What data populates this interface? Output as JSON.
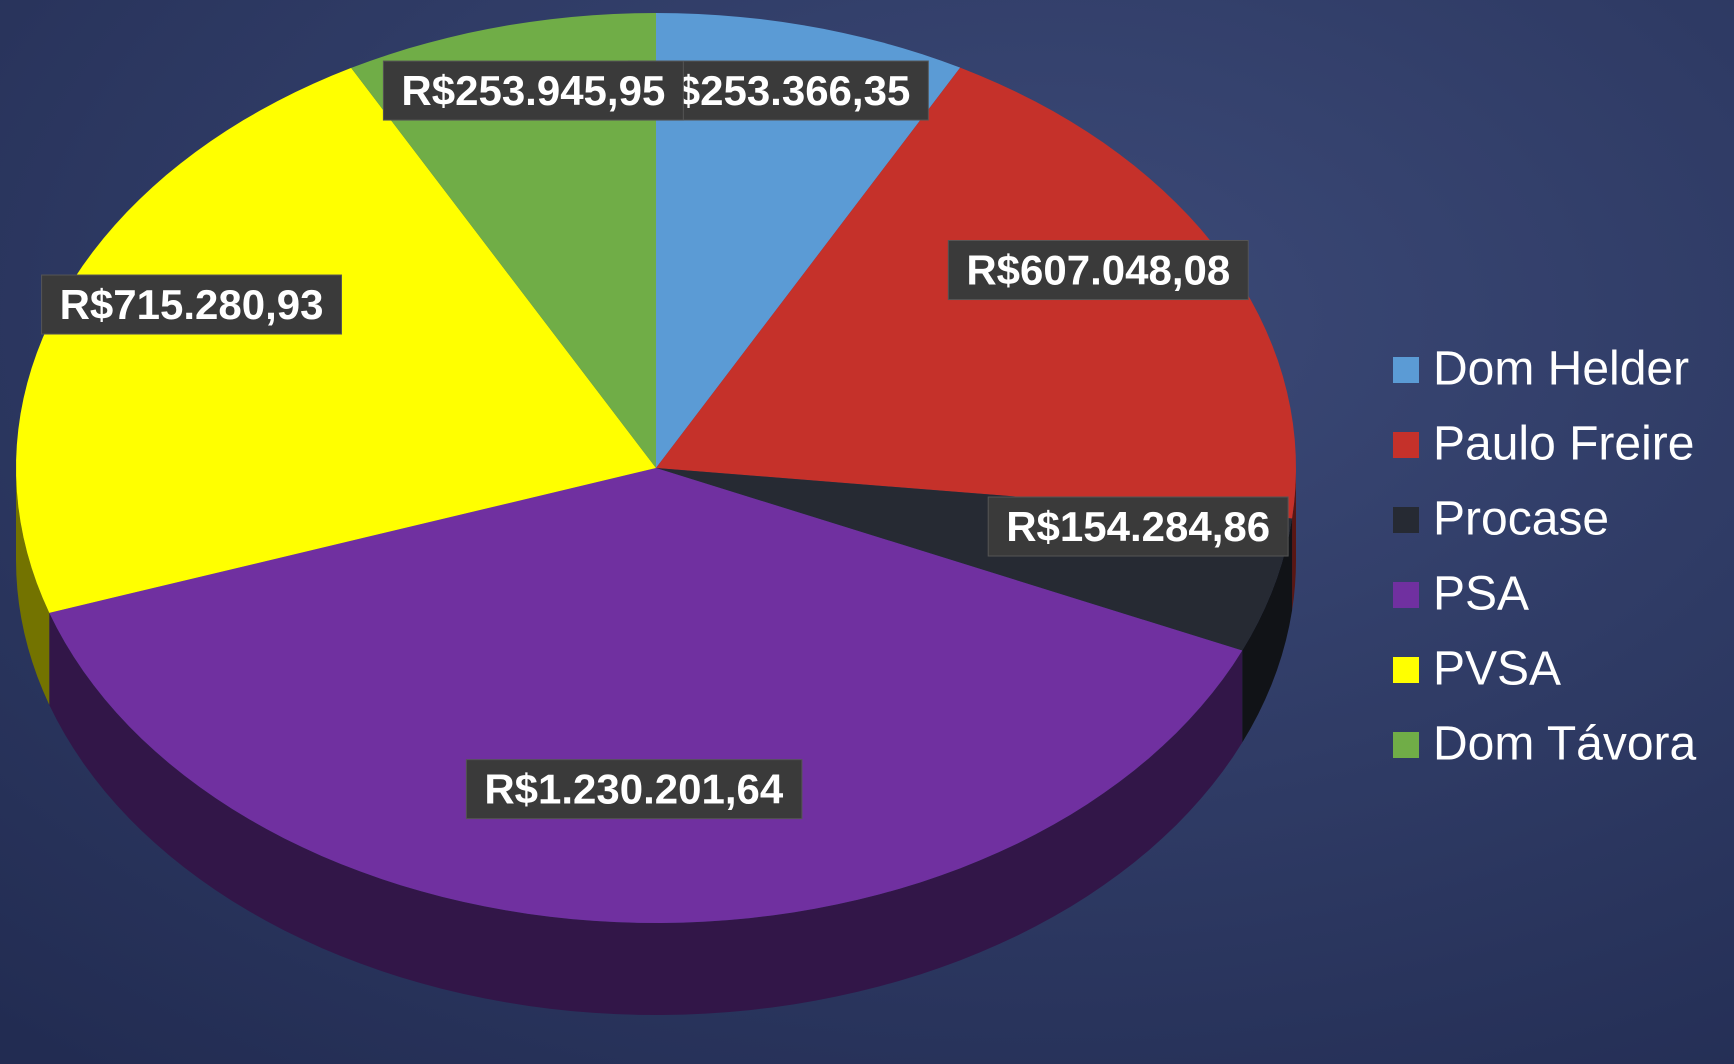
{
  "chart_data": {
    "type": "pie",
    "categories": [
      "Dom Helder",
      "Paulo Freire",
      "Procase",
      "PSA",
      "PVSA",
      "Dom Távora"
    ],
    "values": [
      253366.35,
      607048.08,
      154284.86,
      1230201.64,
      715280.93,
      253945.95
    ],
    "value_labels": [
      "R$253.366,35",
      "R$607.048,08",
      "R$154.284,86",
      "R$1.230.201,64",
      "R$715.280,93",
      "R$253.945,95"
    ],
    "colors": [
      "#5b9bd5",
      "#c5312a",
      "#262a33",
      "#7030a0",
      "#ffff00",
      "#70ad47"
    ],
    "legend": "right"
  }
}
